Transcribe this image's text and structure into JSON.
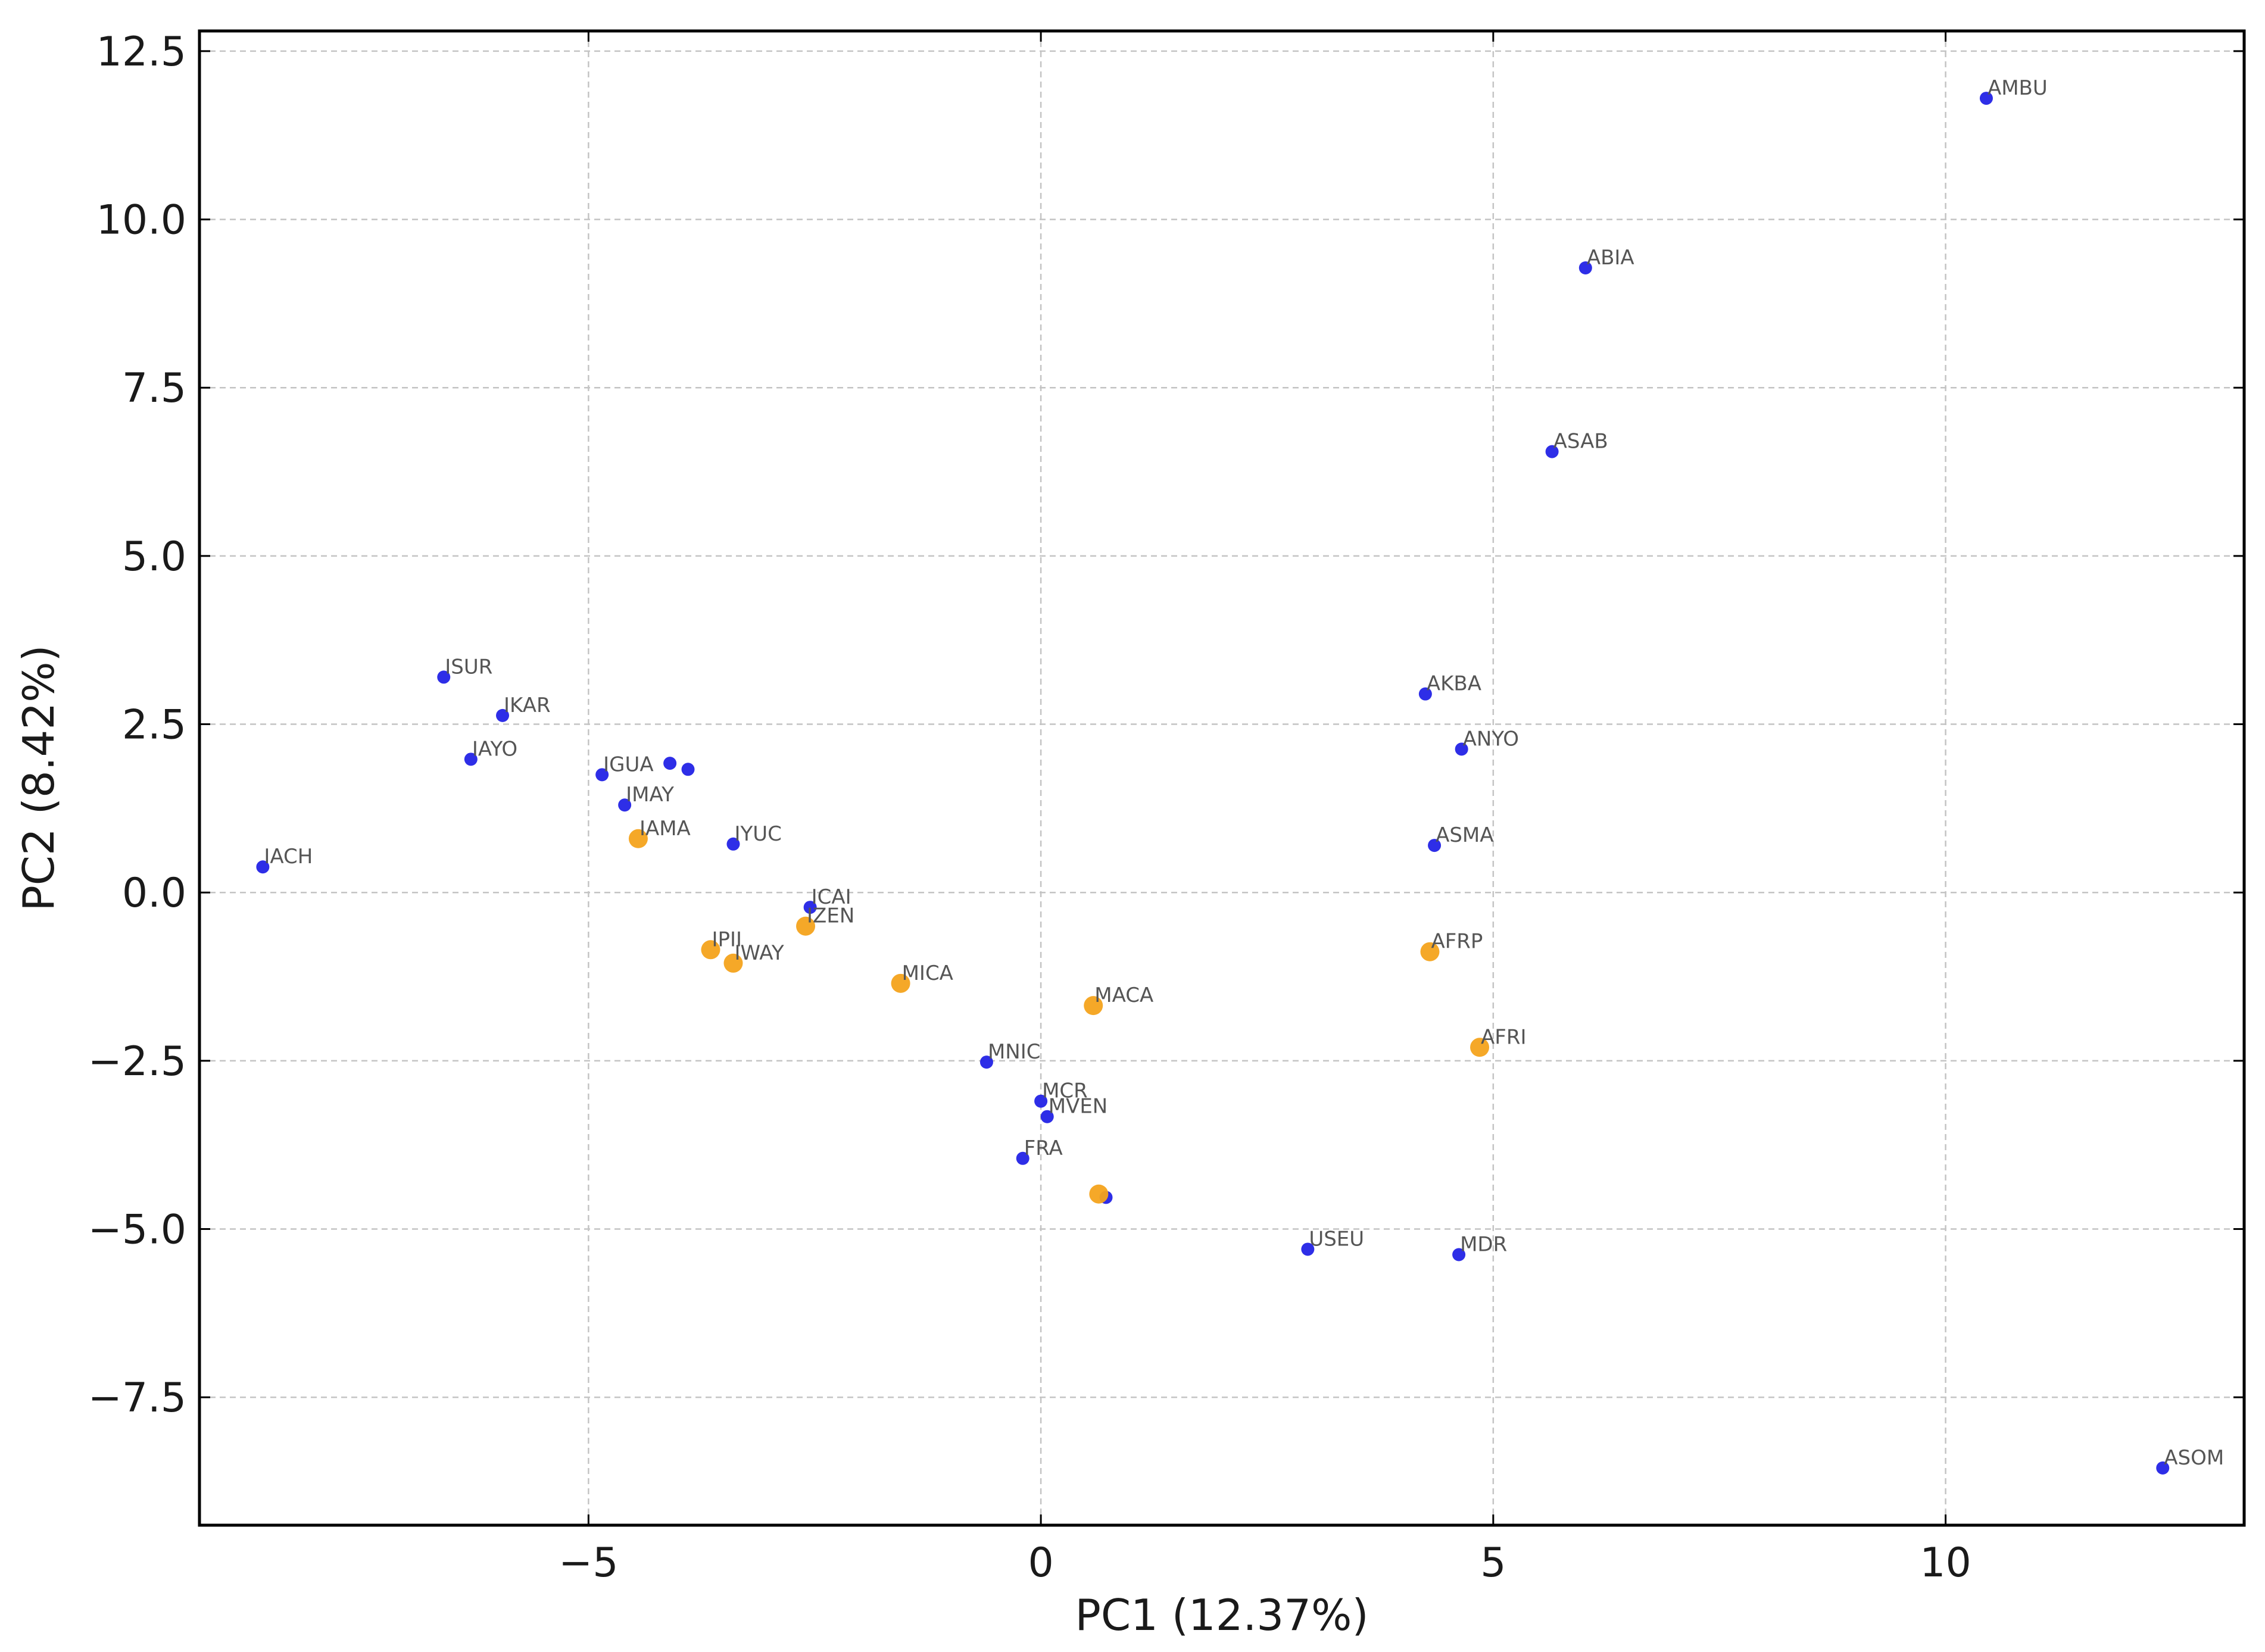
{
  "chart_data": {
    "type": "scatter",
    "title": "",
    "xlabel": "PC1 (12.37%)",
    "ylabel": "PC2 (8.42%)",
    "xlim": [
      -9.3,
      13.3
    ],
    "ylim": [
      -9.4,
      12.8
    ],
    "xticks": [
      -5,
      0,
      5,
      10
    ],
    "xtick_labels": [
      "−5",
      "0",
      "5",
      "10"
    ],
    "yticks": [
      -7.5,
      -5.0,
      -2.5,
      0.0,
      2.5,
      5.0,
      7.5,
      10.0,
      12.5
    ],
    "ytick_labels": [
      "−7.5",
      "−5.0",
      "−2.5",
      "0.0",
      "2.5",
      "5.0",
      "7.5",
      "10.0",
      "12.5"
    ],
    "grid": true,
    "colors": {
      "blue": "#2323e6",
      "orange": "#f4a31c",
      "label": "#555555",
      "grid": "#c4c4c4"
    },
    "series": [
      {
        "name": "blue",
        "color": "#2323e6",
        "points": [
          {
            "x": 10.45,
            "y": 11.8,
            "label": "AMBU"
          },
          {
            "x": 6.02,
            "y": 9.28,
            "label": "ABIA"
          },
          {
            "x": 5.65,
            "y": 6.55,
            "label": "ASAB"
          },
          {
            "x": 4.25,
            "y": 2.95,
            "label": "AKBA"
          },
          {
            "x": 4.65,
            "y": 2.13,
            "label": "ANYO"
          },
          {
            "x": 4.35,
            "y": 0.7,
            "label": "ASMA"
          },
          {
            "x": -6.6,
            "y": 3.2,
            "label": "ISUR"
          },
          {
            "x": -5.95,
            "y": 2.63,
            "label": "IKAR"
          },
          {
            "x": -6.3,
            "y": 1.98,
            "label": "IAYO"
          },
          {
            "x": -4.85,
            "y": 1.75,
            "label": "IGUA"
          },
          {
            "x": -4.1,
            "y": 1.92,
            "label": ""
          },
          {
            "x": -3.9,
            "y": 1.83,
            "label": ""
          },
          {
            "x": -4.6,
            "y": 1.3,
            "label": "IMAY"
          },
          {
            "x": -3.4,
            "y": 0.72,
            "label": "IYUC"
          },
          {
            "x": -8.6,
            "y": 0.38,
            "label": "IACH"
          },
          {
            "x": -2.55,
            "y": -0.22,
            "label": "ICAI"
          },
          {
            "x": -0.6,
            "y": -2.52,
            "label": "MNIC"
          },
          {
            "x": 0.0,
            "y": -3.1,
            "label": "MCR"
          },
          {
            "x": 0.07,
            "y": -3.33,
            "label": "MVEN"
          },
          {
            "x": -0.2,
            "y": -3.95,
            "label": "FRA"
          },
          {
            "x": 0.72,
            "y": -4.53,
            "label": ""
          },
          {
            "x": 2.95,
            "y": -5.3,
            "label": "USEU"
          },
          {
            "x": 4.62,
            "y": -5.38,
            "label": "MDR"
          },
          {
            "x": 12.4,
            "y": -8.55,
            "label": "ASOM"
          }
        ]
      },
      {
        "name": "orange",
        "color": "#f4a31c",
        "points": [
          {
            "x": -4.45,
            "y": 0.8,
            "label": "IAMA"
          },
          {
            "x": -2.6,
            "y": -0.5,
            "label": "IZEN"
          },
          {
            "x": -3.65,
            "y": -0.85,
            "label": "IPII"
          },
          {
            "x": -3.4,
            "y": -1.05,
            "label": "IWAY"
          },
          {
            "x": -1.55,
            "y": -1.35,
            "label": "MICA"
          },
          {
            "x": 0.58,
            "y": -1.68,
            "label": "MACA"
          },
          {
            "x": 4.3,
            "y": -0.88,
            "label": "AFRP"
          },
          {
            "x": 4.85,
            "y": -2.3,
            "label": "AFRI"
          },
          {
            "x": 0.64,
            "y": -4.48,
            "label": ""
          }
        ]
      }
    ]
  }
}
